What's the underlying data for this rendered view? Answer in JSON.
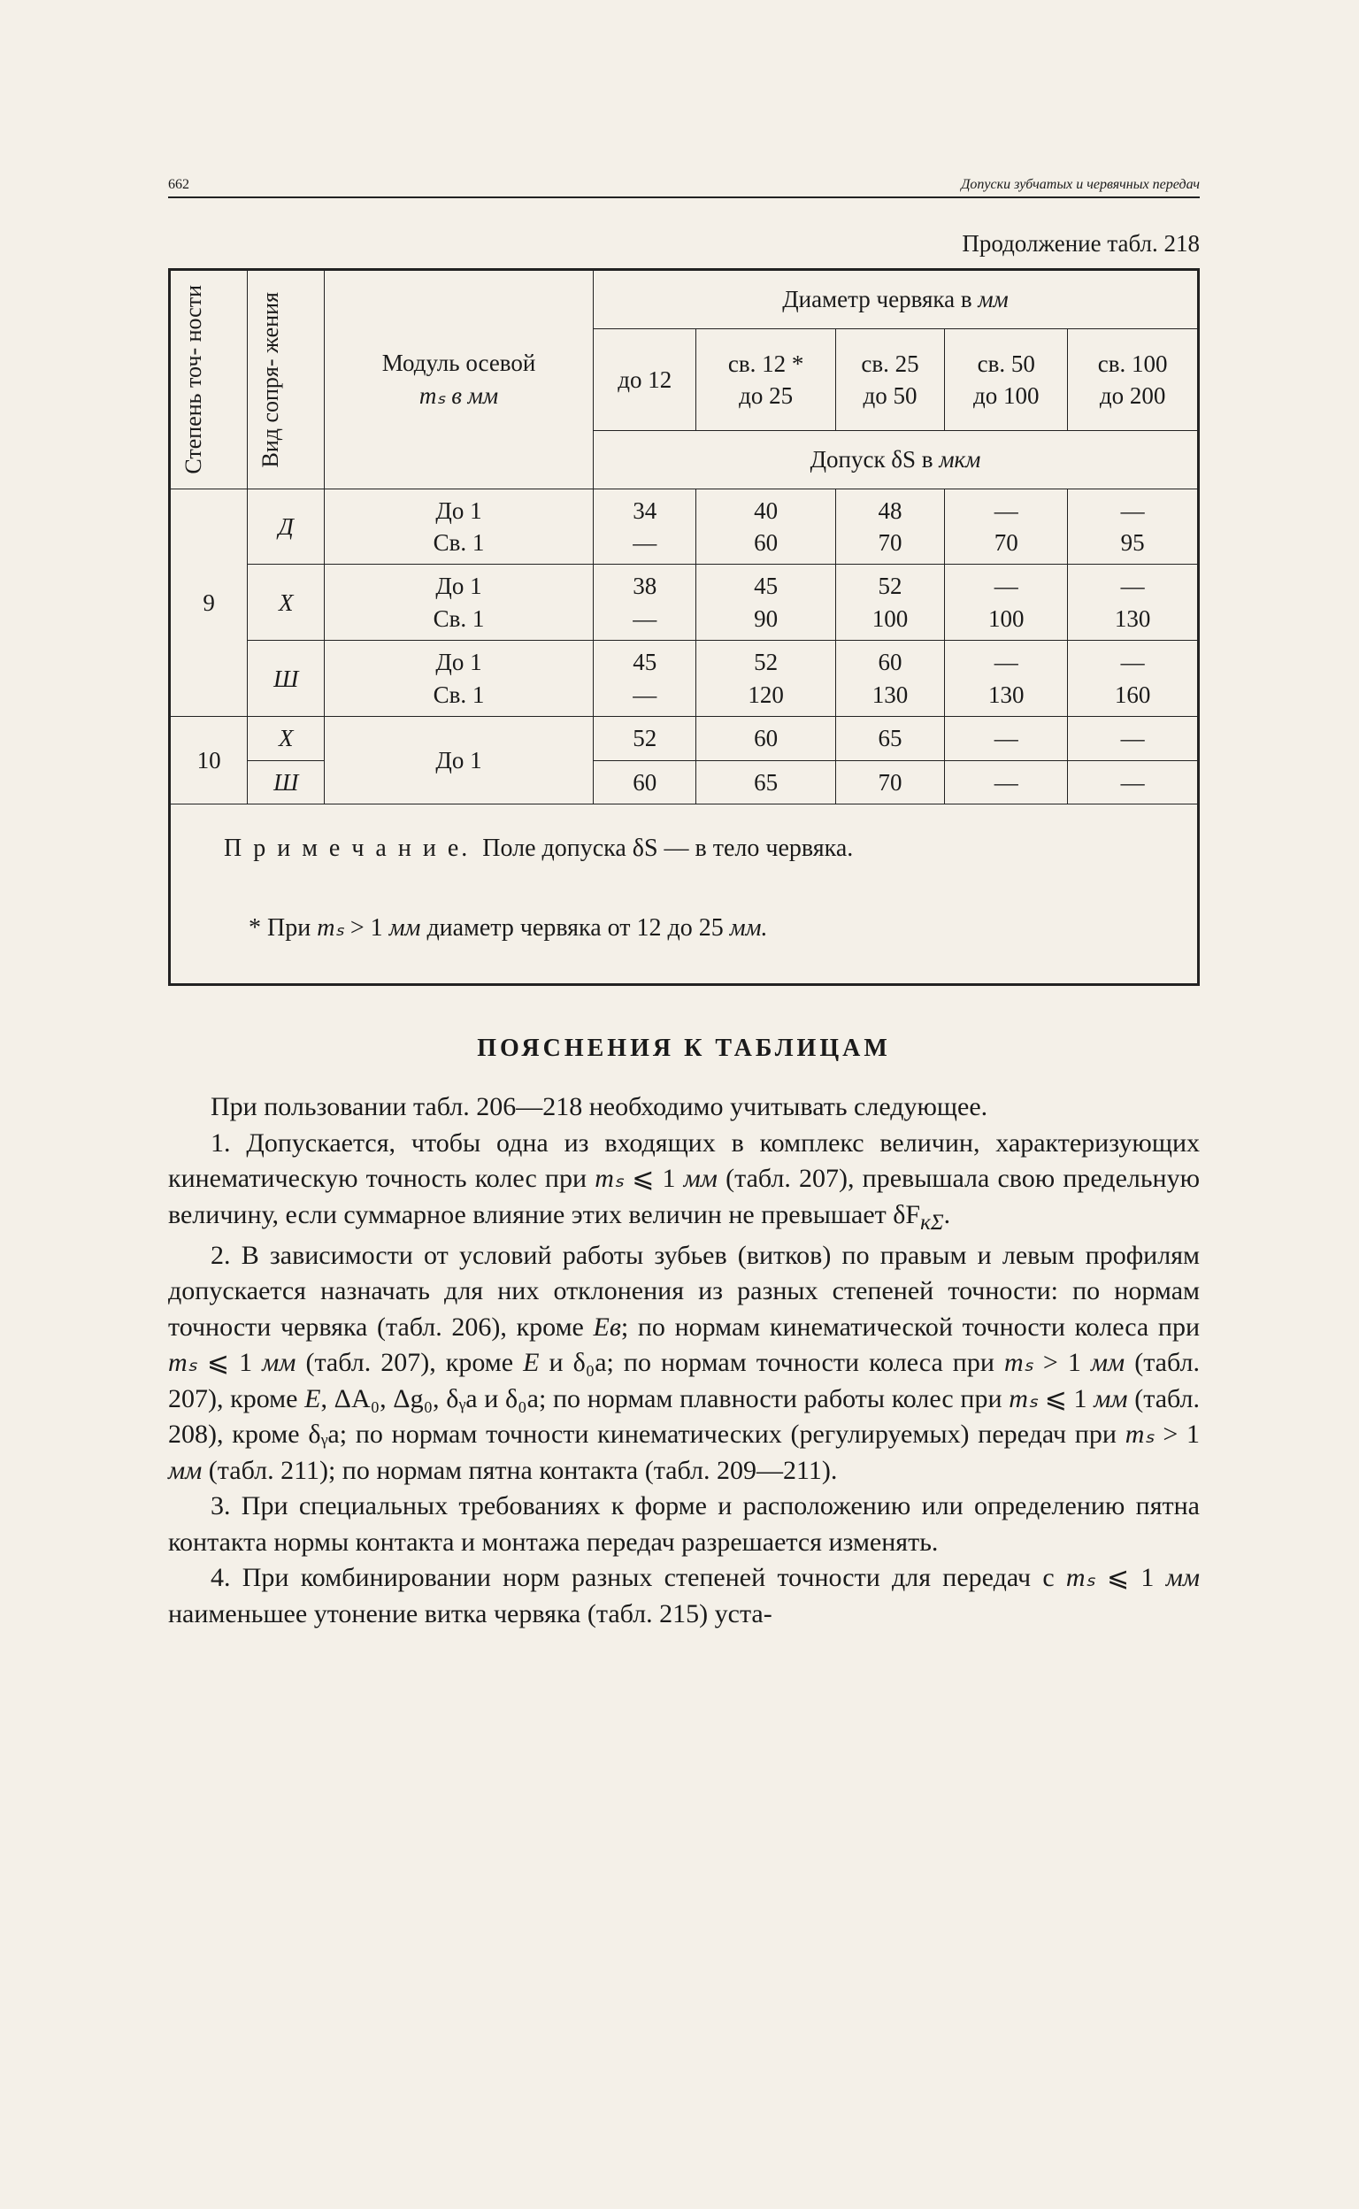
{
  "page_number": "662",
  "chapter_title": "Допуски зубчатых и червячных передач",
  "continuation": "Продолжение табл. 218",
  "table": {
    "head": {
      "col1": "Степень точ-\nности",
      "col2": "Вид сопря-\nжения",
      "col3_line1": "Модуль осевой",
      "col3_line2": "mₛ в мм",
      "diam_header_line1": "Диаметр червяка в ",
      "diam_header_line2": "мм",
      "d1": "до 12",
      "d2a": "св. 12 *",
      "d2b": "до 25",
      "d3a": "св. 25",
      "d3b": "до 50",
      "d4a": "св. 50",
      "d4b": "до 100",
      "d5a": "св. 100",
      "d5b": "до 200",
      "tol_header_a": "Допуск δS в ",
      "tol_header_b": "мкм"
    },
    "rows": [
      {
        "deg": "9",
        "sub": [
          {
            "fit": "Д",
            "mod1": "До 1",
            "mod2": "Св. 1",
            "v": [
              [
                "34",
                "—"
              ],
              [
                "40",
                "60"
              ],
              [
                "48",
                "70"
              ],
              [
                "—",
                "70"
              ],
              [
                "—",
                "95"
              ]
            ]
          },
          {
            "fit": "Х",
            "mod1": "До 1",
            "mod2": "Св. 1",
            "v": [
              [
                "38",
                "—"
              ],
              [
                "45",
                "90"
              ],
              [
                "52",
                "100"
              ],
              [
                "—",
                "100"
              ],
              [
                "—",
                "130"
              ]
            ]
          },
          {
            "fit": "Ш",
            "mod1": "До 1",
            "mod2": "Св. 1",
            "v": [
              [
                "45",
                "—"
              ],
              [
                "52",
                "120"
              ],
              [
                "60",
                "130"
              ],
              [
                "—",
                "130"
              ],
              [
                "—",
                "160"
              ]
            ]
          }
        ]
      },
      {
        "deg": "10",
        "mod": "До 1",
        "sub": [
          {
            "fit": "Х",
            "v": [
              "52",
              "60",
              "65",
              "—",
              "—"
            ]
          },
          {
            "fit": "Ш",
            "v": [
              "60",
              "65",
              "70",
              "—",
              "—"
            ]
          }
        ]
      }
    ],
    "note_label": "П р и м е ч а н и е.",
    "note_text": "  Поле допуска δS — в тело червяка.",
    "footnote_pre": "* При ",
    "footnote_sym": "mₛ",
    "footnote_mid": " > 1 ",
    "footnote_unit": "мм",
    "footnote_post": " диаметр червяка от 12 до 25 ",
    "footnote_unit2": "мм."
  },
  "section_heading": "ПОЯСНЕНИЯ К ТАБЛИЦАМ",
  "para1": "При пользовании табл. 206—218 необходимо учитывать следующее.",
  "para2a": "1. Допускается, чтобы одна из входящих в комплекс величин, характеризующих кинематическую точность колес при ",
  "para2_sym1": "mₛ",
  "para2b": " ⩽ 1 ",
  "para2_unit": "мм",
  "para2c": " (табл. 207), превышала свою предельную величину, если суммарное влияние этих величин не превышает δF",
  "para2_sub": "кΣ",
  "para2_end": ".",
  "para3a": "2. В зависимости от условий работы зубьев (витков) по правым и левым профилям допускается назначать для них отклонения из разных степеней точности: по нормам точности червяка (табл. 206), кроме ",
  "para3_e1": "Eв",
  "para3b": "; по нормам кинематической точности колеса при ",
  "para3_sym2": "mₛ",
  "para3c": " ⩽ 1 ",
  "para3_unit2": "мм",
  "para3d": " (табл. 207), кроме ",
  "para3_e2": "E",
  "para3e": " и δ₀a; по нормам точности колеса при ",
  "para3_sym3": "mₛ",
  "para3f": " > 1 ",
  "para3_unit3": "мм",
  "para3g": " (табл. 207), кроме ",
  "para3_e3": "E",
  "para3h": ", ΔA₀, Δg₀, δᵧa и δ₀a; по нормам плавности работы колес при ",
  "para3_sym4": "mₛ",
  "para3i": " ⩽ 1 ",
  "para3_unit4": "мм",
  "para3j": " (табл. 208), кроме δᵧa; по нормам точности кинематических (регулируемых) передач при ",
  "para3_sym5": "mₛ",
  "para3k": " > 1 ",
  "para3_unit5": "мм",
  "para3l": " (табл. 211); по нормам пятна контакта (табл. 209—211).",
  "para4": "3. При специальных требованиях к форме и расположению или определению пятна контакта нормы контакта и монтажа передач разрешается изменять.",
  "para5a": "4. При комбинировании норм разных степеней точности для передач с ",
  "para5_sym": "mₛ",
  "para5b": " ⩽ 1 ",
  "para5_unit": "мм",
  "para5c": " наименьшее утонение витка червяка (табл. 215) уста-"
}
